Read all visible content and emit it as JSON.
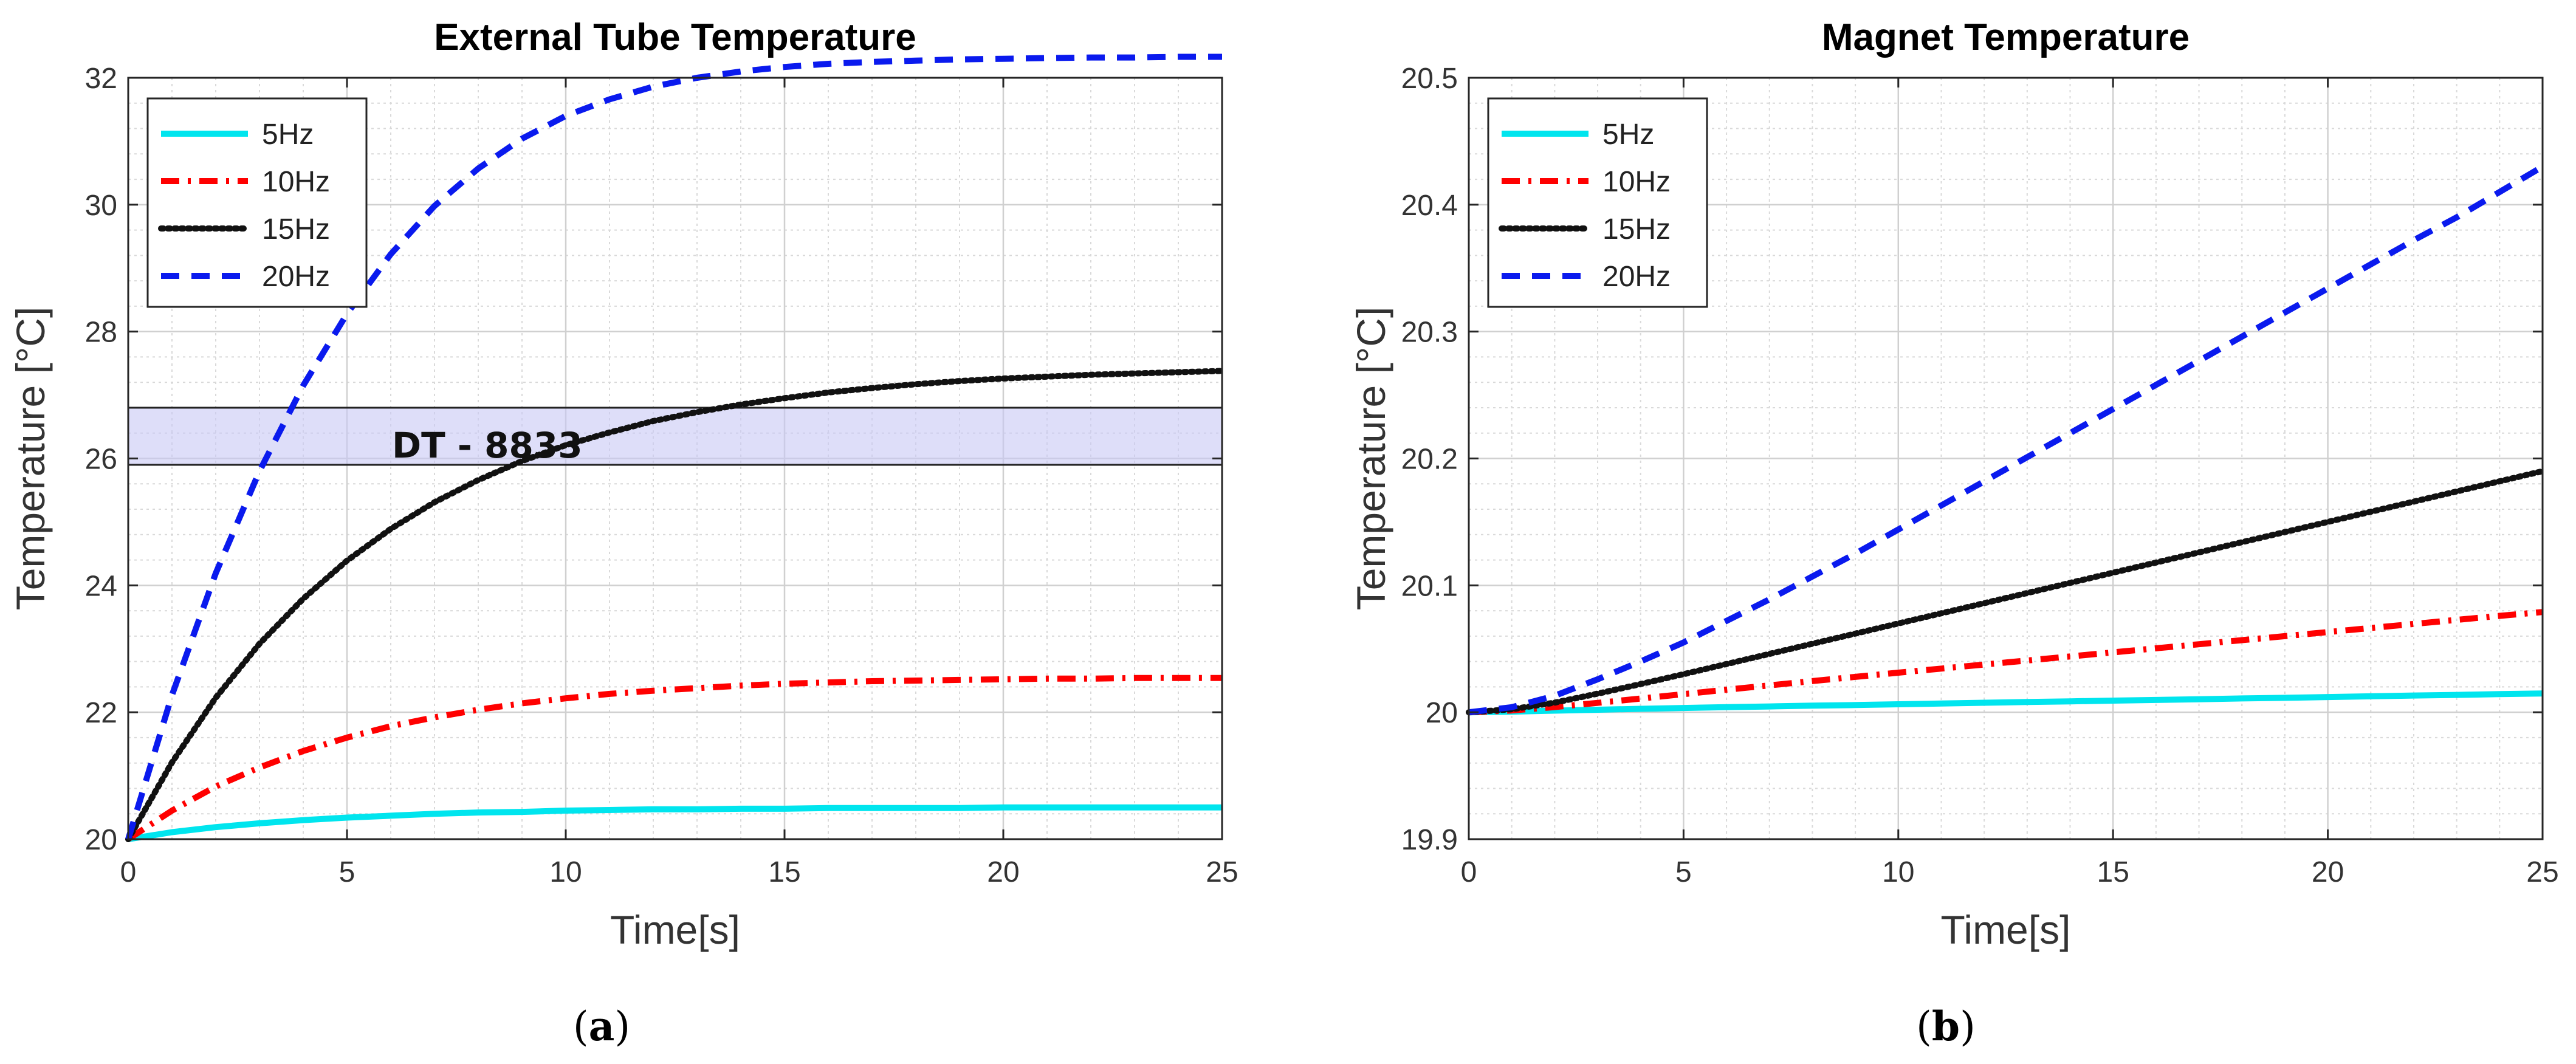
{
  "chart_data": [
    {
      "type": "line",
      "title": "External Tube Temperature",
      "xlabel": "Time[s]",
      "ylabel": "Temperature [°C]",
      "xlim": [
        0,
        25
      ],
      "ylim": [
        20,
        32
      ],
      "xticks": [
        0,
        5,
        10,
        15,
        20,
        25
      ],
      "yticks": [
        20,
        22,
        24,
        26,
        28,
        30,
        32
      ],
      "xtick_labels": [
        "0",
        "5",
        "10",
        "15",
        "20",
        "25"
      ],
      "ytick_labels": [
        "20",
        "22",
        "24",
        "26",
        "28",
        "30",
        "32"
      ],
      "grid": true,
      "minor_grid": true,
      "legend_position": "top-left",
      "x": [
        0,
        1,
        2,
        3,
        4,
        5,
        6,
        7,
        8,
        9,
        10,
        11,
        12,
        13,
        14,
        15,
        16,
        17,
        18,
        19,
        20,
        21,
        22,
        23,
        24,
        25
      ],
      "series": [
        {
          "name": "5Hz",
          "color": "#00e5ee",
          "style": "solid",
          "values": [
            20.0,
            20.11,
            20.19,
            20.25,
            20.3,
            20.34,
            20.37,
            20.4,
            20.42,
            20.43,
            20.45,
            20.46,
            20.47,
            20.47,
            20.48,
            20.48,
            20.49,
            20.49,
            20.49,
            20.49,
            20.5,
            20.5,
            20.5,
            20.5,
            20.5,
            20.5
          ]
        },
        {
          "name": "10Hz",
          "color": "#ff0000",
          "style": "dashdot",
          "values": [
            20.0,
            20.45,
            20.83,
            21.13,
            21.39,
            21.6,
            21.78,
            21.92,
            22.04,
            22.14,
            22.22,
            22.29,
            22.34,
            22.38,
            22.42,
            22.45,
            22.47,
            22.49,
            22.5,
            22.51,
            22.52,
            22.53,
            22.53,
            22.54,
            22.54,
            22.54
          ]
        },
        {
          "name": "15Hz",
          "color": "#111111",
          "style": "dotted",
          "values": [
            20.0,
            21.21,
            22.23,
            23.08,
            23.79,
            24.39,
            24.89,
            25.31,
            25.66,
            25.96,
            26.21,
            26.41,
            26.59,
            26.73,
            26.85,
            26.95,
            27.04,
            27.11,
            27.17,
            27.22,
            27.26,
            27.29,
            27.32,
            27.34,
            27.36,
            27.38
          ]
        },
        {
          "name": "20Hz",
          "color": "#0a1aee",
          "style": "dashed",
          "values": [
            20.0,
            22.27,
            24.19,
            25.8,
            27.15,
            28.28,
            29.22,
            29.98,
            30.57,
            31.04,
            31.4,
            31.66,
            31.86,
            32.0,
            32.1,
            32.17,
            32.22,
            32.25,
            32.27,
            32.29,
            32.3,
            32.31,
            32.32,
            32.32,
            32.33,
            32.33
          ]
        }
      ],
      "annotation_band": {
        "label": "DT - 8833",
        "y_range": [
          25.9,
          26.8
        ]
      },
      "caption": "(a)",
      "caption_letter": "a"
    },
    {
      "type": "line",
      "title": "Magnet Temperature",
      "xlabel": "Time[s]",
      "ylabel": "Temperature [°C]",
      "xlim": [
        0,
        25
      ],
      "ylim": [
        19.9,
        20.5
      ],
      "xticks": [
        0,
        5,
        10,
        15,
        20,
        25
      ],
      "yticks": [
        19.9,
        20.0,
        20.1,
        20.2,
        20.3,
        20.4,
        20.5
      ],
      "xtick_labels": [
        "0",
        "5",
        "10",
        "15",
        "20",
        "25"
      ],
      "ytick_labels": [
        "19.9",
        "20",
        "20.1",
        "20.2",
        "20.3",
        "20.4",
        "20.5"
      ],
      "grid": true,
      "minor_grid": true,
      "legend_position": "top-left",
      "x": [
        0,
        1,
        2,
        3,
        4,
        5,
        6,
        7,
        8,
        9,
        10,
        11,
        12,
        13,
        14,
        15,
        16,
        17,
        18,
        19,
        20,
        21,
        22,
        23,
        24,
        25
      ],
      "series": [
        {
          "name": "5Hz",
          "color": "#00e5ee",
          "style": "solid",
          "values": [
            20.0,
            20.0005,
            20.0013,
            20.002,
            20.0027,
            20.0034,
            20.004,
            20.0046,
            20.0052,
            20.0057,
            20.0063,
            20.0069,
            20.0075,
            20.0081,
            20.0086,
            20.0092,
            20.0097,
            20.0103,
            20.0109,
            20.0114,
            20.012,
            20.0126,
            20.0132,
            20.0137,
            20.0143,
            20.0148
          ]
        },
        {
          "name": "10Hz",
          "color": "#ff0000",
          "style": "dashdot",
          "values": [
            20.0,
            20.0014,
            20.0041,
            20.0074,
            20.0108,
            20.0143,
            20.0178,
            20.0212,
            20.0246,
            20.0279,
            20.0312,
            20.0344,
            20.0376,
            20.0408,
            20.044,
            20.0472,
            20.0504,
            20.0536,
            20.0568,
            20.06,
            20.0632,
            20.0664,
            20.0696,
            20.0728,
            20.076,
            20.079
          ]
        },
        {
          "name": "15Hz",
          "color": "#111111",
          "style": "dotted",
          "values": [
            20.0,
            20.0024,
            20.0076,
            20.0147,
            20.0222,
            20.03,
            20.038,
            20.046,
            20.054,
            20.062,
            20.07,
            20.078,
            20.086,
            20.094,
            20.102,
            20.11,
            20.118,
            20.126,
            20.134,
            20.142,
            20.15,
            20.158,
            20.166,
            20.174,
            20.182,
            20.19
          ]
        },
        {
          "name": "20Hz",
          "color": "#0a1aee",
          "style": "dashed",
          "values": [
            20.0,
            20.004,
            20.013,
            20.026,
            20.04,
            20.055,
            20.072,
            20.089,
            20.107,
            20.125,
            20.144,
            20.163,
            20.182,
            20.201,
            20.22,
            20.239,
            20.258,
            20.277,
            20.296,
            20.315,
            20.334,
            20.353,
            20.372,
            20.39,
            20.41,
            20.43
          ]
        }
      ],
      "caption": "(b)",
      "caption_letter": "b"
    }
  ]
}
